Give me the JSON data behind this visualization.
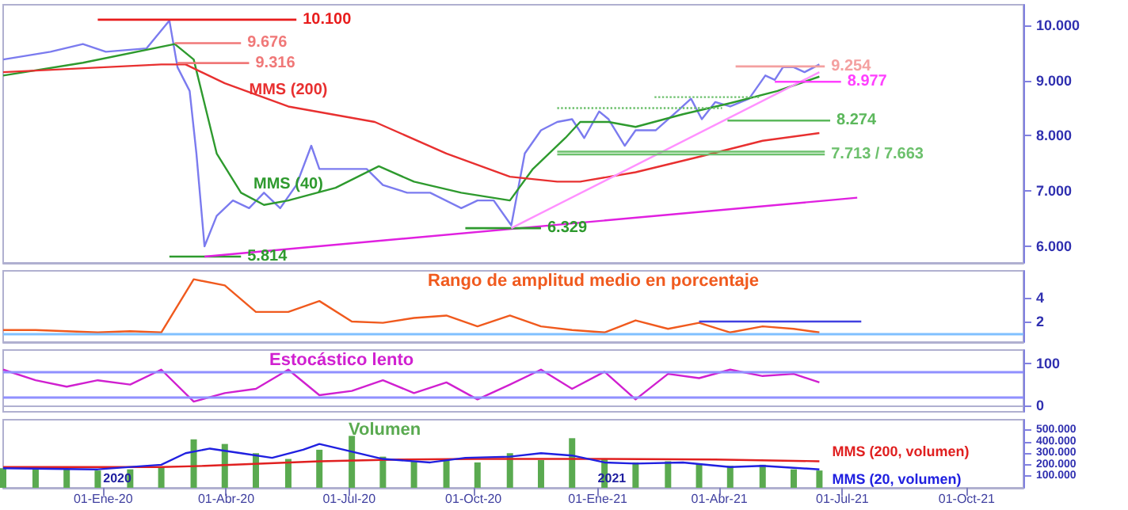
{
  "chart_data": [
    {
      "type": "line",
      "marker": "none",
      "tick_labels": "y",
      "xlim": [
        "2019-10-19",
        "2021-11-12"
      ],
      "ylim": [
        5700,
        10370
      ],
      "yticks": [
        {
          "value": 6000,
          "label": "6.000"
        },
        {
          "value": 7000,
          "label": "7.000"
        },
        {
          "value": 8000,
          "label": "8.000"
        },
        {
          "value": 9000,
          "label": "9.000"
        },
        {
          "value": 10000,
          "label": "10.000"
        }
      ],
      "series": [
        {
          "color": "#7b7bef",
          "x": [
            "2019-10-19",
            "2019-11-23",
            "2019-12-17",
            "2020-01-03",
            "2020-02-02",
            "2020-02-19",
            "2020-02-25",
            "2020-03-05",
            "2020-03-10",
            "2020-03-16",
            "2020-03-25",
            "2020-04-06",
            "2020-04-18",
            "2020-04-29",
            "2020-05-11",
            "2020-05-23",
            "2020-06-03",
            "2020-06-09",
            "2020-06-21",
            "2020-07-14",
            "2020-07-26",
            "2020-08-13",
            "2020-08-30",
            "2020-09-22",
            "2020-10-04",
            "2020-10-16",
            "2020-10-29",
            "2020-11-08",
            "2020-11-20",
            "2020-12-02",
            "2020-12-13",
            "2020-12-22",
            "2021-01-02",
            "2021-01-09",
            "2021-01-21",
            "2021-01-29",
            "2021-02-13",
            "2021-03-02",
            "2021-03-11",
            "2021-03-19",
            "2021-03-29",
            "2021-04-09",
            "2021-04-23",
            "2021-05-05",
            "2021-05-12",
            "2021-05-18",
            "2021-05-26",
            "2021-06-03",
            "2021-06-14"
          ],
          "values": [
            9380,
            9520,
            9660,
            9520,
            9580,
            10085,
            9240,
            8810,
            7680,
            6000,
            6550,
            6830,
            6690,
            6970,
            6690,
            7110,
            7820,
            7400,
            7400,
            7400,
            7110,
            6970,
            6970,
            6690,
            6830,
            6830,
            6380,
            7680,
            8100,
            8250,
            8300,
            7960,
            8440,
            8300,
            7820,
            8100,
            8100,
            8470,
            8670,
            8300,
            8610,
            8530,
            8670,
            9090,
            9010,
            9240,
            9240,
            9150,
            9290
          ]
        },
        {
          "name": "MMS (40)",
          "color": "#2e9a2e",
          "x": [
            "2019-10-19",
            "2019-12-17",
            "2020-02-23",
            "2020-03-08",
            "2020-03-25",
            "2020-04-12",
            "2020-04-29",
            "2020-05-17",
            "2020-06-21",
            "2020-07-23",
            "2020-08-18",
            "2020-09-22",
            "2020-10-28",
            "2020-11-14",
            "2020-12-08",
            "2020-12-19",
            "2021-01-09",
            "2021-01-29",
            "2021-03-05",
            "2021-04-09",
            "2021-05-14",
            "2021-06-14"
          ],
          "values": [
            9090,
            9320,
            9660,
            9380,
            7680,
            6970,
            6750,
            6830,
            7060,
            7450,
            7170,
            6970,
            6830,
            7400,
            7960,
            8250,
            8250,
            8160,
            8390,
            8590,
            8810,
            9070
          ]
        },
        {
          "name": "MMS (200)",
          "color": "#e83030",
          "x": [
            "2019-10-19",
            "2020-02-13",
            "2020-03-02",
            "2020-03-31",
            "2020-05-17",
            "2020-07-20",
            "2020-09-11",
            "2020-10-28",
            "2020-12-02",
            "2020-12-19",
            "2021-01-29",
            "2021-03-17",
            "2021-05-03",
            "2021-06-14"
          ],
          "values": [
            9150,
            9290,
            9290,
            8950,
            8530,
            8250,
            7680,
            7260,
            7170,
            7170,
            7340,
            7620,
            7910,
            8050
          ]
        },
        {
          "name": "10.100",
          "color": "#e81c1c",
          "x": [
            "2019-12-28",
            "2020-05-23"
          ],
          "values": [
            10100,
            10100
          ]
        },
        {
          "name": "9.676",
          "color": "#f07878",
          "x": [
            "2020-02-23",
            "2020-04-12"
          ],
          "values": [
            9676,
            9676
          ]
        },
        {
          "name": "9.316",
          "color": "#f07878",
          "x": [
            "2020-02-25",
            "2020-04-18"
          ],
          "values": [
            9316,
            9316
          ]
        },
        {
          "name": "5.814",
          "color": "#2e9a2e",
          "x": [
            "2020-02-19",
            "2020-04-12"
          ],
          "values": [
            5814,
            5814
          ]
        },
        {
          "color": "#e020e0",
          "x": [
            "2020-03-16",
            "2021-07-12"
          ],
          "values": [
            5814,
            6880
          ]
        },
        {
          "name": "6.329",
          "color": "#2e9a2e",
          "x": [
            "2020-09-25",
            "2020-11-20"
          ],
          "values": [
            6329,
            6329
          ]
        },
        {
          "color": "#ff90ff",
          "x": [
            "2020-10-29",
            "2021-06-14"
          ],
          "values": [
            6329,
            9150
          ]
        },
        {
          "name": "9.254",
          "color": "#f4a0a0",
          "x": [
            "2021-04-13",
            "2021-06-18"
          ],
          "values": [
            9254,
            9254
          ]
        },
        {
          "name": "8.977",
          "color": "#ff40ff",
          "x": [
            "2021-05-12",
            "2021-06-30"
          ],
          "values": [
            8977,
            8977
          ]
        },
        {
          "name": "8.274",
          "color": "#5cb85c",
          "x": [
            "2021-04-07",
            "2021-06-22"
          ],
          "values": [
            8274,
            8274
          ]
        },
        {
          "name": "7.713 / 7.663",
          "color": "#6cc06c",
          "x": [
            "2020-12-02",
            "2021-06-18"
          ],
          "values": [
            7663,
            7663
          ]
        },
        {
          "color": "#6cc06c",
          "x": [
            "2020-12-02",
            "2021-06-18"
          ],
          "values": [
            7713,
            7713
          ]
        },
        {
          "color": "#6cc06c",
          "line_style": "dotted",
          "x": [
            "2020-12-02",
            "2021-04-03"
          ],
          "values": [
            8500,
            8500
          ]
        },
        {
          "color": "#6cc06c",
          "line_style": "dotted",
          "x": [
            "2021-02-12",
            "2021-05-01"
          ],
          "values": [
            8700,
            8700
          ]
        }
      ]
    },
    {
      "type": "line",
      "marker": "none",
      "tick_labels": "y",
      "xlim": [
        "2019-10-19",
        "2021-11-12"
      ],
      "ylim": [
        0.3,
        6.2
      ],
      "yticks": [
        2,
        4
      ],
      "annotations": [
        "Rango de amplitud medio en porcentaje"
      ],
      "ref_lines": [
        {
          "axis": "y",
          "value": 1,
          "color": "#80c0ff"
        }
      ],
      "series": [
        {
          "color": "#f05a1e",
          "x": [
            "2019-10-19",
            "2019-11-12",
            "2019-12-05",
            "2019-12-28",
            "2020-01-21",
            "2020-02-13",
            "2020-03-08",
            "2020-03-31",
            "2020-04-23",
            "2020-05-17",
            "2020-06-09",
            "2020-07-03",
            "2020-07-26",
            "2020-08-18",
            "2020-09-11",
            "2020-10-04",
            "2020-10-28",
            "2020-11-20",
            "2020-12-13",
            "2021-01-06",
            "2021-01-29",
            "2021-02-22",
            "2021-03-17",
            "2021-04-09",
            "2021-05-03",
            "2021-05-26",
            "2021-06-14"
          ],
          "values": [
            1.3,
            1.3,
            1.2,
            1.1,
            1.2,
            1.1,
            5.5,
            5.0,
            2.8,
            2.8,
            3.7,
            2.0,
            1.9,
            2.3,
            2.5,
            1.6,
            2.5,
            1.6,
            1.3,
            1.1,
            2.1,
            1.4,
            1.9,
            1.1,
            1.6,
            1.4,
            1.1
          ]
        },
        {
          "color": "#4040e0",
          "x": [
            "2021-03-17",
            "2021-07-15"
          ],
          "values": [
            2,
            2
          ]
        }
      ]
    },
    {
      "type": "line",
      "marker": "none",
      "tick_labels": "y",
      "xlim": [
        "2019-10-19",
        "2021-11-12"
      ],
      "ylim": [
        -14,
        131
      ],
      "yticks": [
        0,
        100
      ],
      "annotations": [
        "Estocástico lento"
      ],
      "ref_lines": [
        {
          "axis": "y",
          "value": 80,
          "color": "#9090ff"
        },
        {
          "axis": "y",
          "value": 20,
          "color": "#9090ff"
        }
      ],
      "series": [
        {
          "color": "#d020d0",
          "x": [
            "2019-10-19",
            "2019-11-12",
            "2019-12-05",
            "2019-12-28",
            "2020-01-21",
            "2020-02-13",
            "2020-03-08",
            "2020-03-31",
            "2020-04-23",
            "2020-05-17",
            "2020-06-09",
            "2020-07-03",
            "2020-07-26",
            "2020-08-18",
            "2020-09-11",
            "2020-10-04",
            "2020-10-28",
            "2020-11-20",
            "2020-12-13",
            "2021-01-06",
            "2021-01-29",
            "2021-02-22",
            "2021-03-17",
            "2021-04-09",
            "2021-05-03",
            "2021-05-26",
            "2021-06-14"
          ],
          "values": [
            85,
            60,
            45,
            60,
            50,
            85,
            10,
            30,
            40,
            85,
            25,
            35,
            60,
            30,
            55,
            15,
            50,
            85,
            40,
            80,
            15,
            75,
            65,
            85,
            70,
            75,
            55
          ]
        }
      ]
    },
    {
      "type": "bar",
      "marker": "none",
      "xlim": [
        "2019-10-19",
        "2021-11-12"
      ],
      "ylim": [
        0,
        590000
      ],
      "yticks": [
        {
          "value": 100000,
          "label": "100.000"
        },
        {
          "value": 200000,
          "label": "200.000"
        },
        {
          "value": 300000,
          "label": "300.000"
        },
        {
          "value": 400000,
          "label": "400.000"
        },
        {
          "value": 500000,
          "label": "500.000"
        }
      ],
      "xticks": [
        {
          "value": "2020-01-01",
          "label": "01-Ene-20"
        },
        {
          "value": "2020-04-01",
          "label": "01-Abr-20"
        },
        {
          "value": "2020-07-01",
          "label": "01-Jul-20"
        },
        {
          "value": "2020-10-01",
          "label": "01-Oct-20"
        },
        {
          "value": "2021-01-01",
          "label": "01-Ene-21"
        },
        {
          "value": "2021-04-01",
          "label": "01-Abr-21"
        },
        {
          "value": "2021-07-01",
          "label": "01-Jul-21"
        },
        {
          "value": "2021-10-01",
          "label": "01-Oct-21"
        }
      ],
      "annotations": [
        "Volumen",
        {
          "text": "2020",
          "x": "2020-01-01",
          "y": 30000
        },
        {
          "text": "2021",
          "x": "2021-01-01",
          "y": 30000
        }
      ],
      "series": [
        {
          "color": "#5aaa50",
          "x": [
            "2019-10-19",
            "2019-11-12",
            "2019-12-05",
            "2019-12-28",
            "2020-01-21",
            "2020-02-13",
            "2020-03-08",
            "2020-03-31",
            "2020-04-23",
            "2020-05-17",
            "2020-06-09",
            "2020-07-03",
            "2020-07-26",
            "2020-08-18",
            "2020-09-11",
            "2020-10-04",
            "2020-10-28",
            "2020-11-20",
            "2020-12-13",
            "2021-01-06",
            "2021-01-29",
            "2021-02-22",
            "2021-03-17",
            "2021-04-09",
            "2021-05-03",
            "2021-05-26",
            "2021-06-14"
          ],
          "values": [
            170000,
            180000,
            160000,
            150000,
            160000,
            180000,
            420000,
            380000,
            300000,
            250000,
            330000,
            450000,
            270000,
            230000,
            250000,
            220000,
            300000,
            240000,
            430000,
            250000,
            220000,
            230000,
            210000,
            190000,
            200000,
            160000,
            150000
          ]
        },
        {
          "type": "line",
          "name": "MMS (200, volumen)",
          "color": "#e02020",
          "x": [
            "2019-10-19",
            "2020-02-13",
            "2020-03-16",
            "2020-06-09",
            "2020-08-07",
            "2020-10-04",
            "2021-01-06",
            "2021-03-29",
            "2021-06-14"
          ],
          "values": [
            180000,
            180000,
            190000,
            230000,
            245000,
            250000,
            250000,
            245000,
            230000
          ]
        },
        {
          "type": "line",
          "name": "MMS (20, volumen)",
          "color": "#2020e0",
          "x": [
            "2019-10-19",
            "2019-12-28",
            "2020-02-13",
            "2020-03-02",
            "2020-03-20",
            "2020-04-12",
            "2020-05-05",
            "2020-05-28",
            "2020-06-09",
            "2020-06-27",
            "2020-07-26",
            "2020-08-30",
            "2020-09-25",
            "2020-10-28",
            "2020-11-20",
            "2020-12-13",
            "2021-01-06",
            "2021-01-29",
            "2021-03-05",
            "2021-04-09",
            "2021-05-03",
            "2021-06-14"
          ],
          "values": [
            170000,
            160000,
            200000,
            300000,
            340000,
            300000,
            260000,
            330000,
            380000,
            330000,
            250000,
            220000,
            260000,
            270000,
            300000,
            280000,
            220000,
            210000,
            220000,
            180000,
            190000,
            160000
          ]
        }
      ]
    }
  ]
}
